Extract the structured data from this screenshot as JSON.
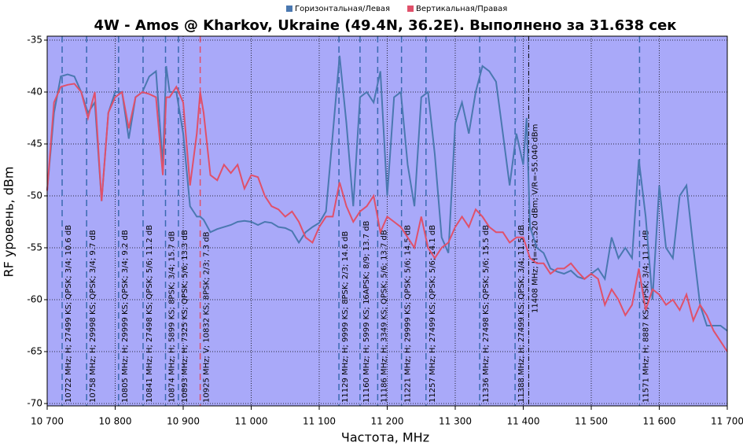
{
  "chart_data": {
    "type": "line",
    "title": "4W - Amos @ Kharkov, Ukraine (49.4N, 36.2E). Выполнено за 31.638 сек",
    "x_label": "Частота, MHz",
    "y_label": "RF уровень, dBm",
    "xlim": [
      10700,
      11700
    ],
    "ylim": [
      -70,
      -35
    ],
    "xticks": [
      {
        "value": 10700,
        "label": "10 700"
      },
      {
        "value": 10800,
        "label": "10 800"
      },
      {
        "value": 10900,
        "label": "10 900"
      },
      {
        "value": 11000,
        "label": "11 000"
      },
      {
        "value": 11100,
        "label": "11 100"
      },
      {
        "value": 11200,
        "label": "11 200"
      },
      {
        "value": 11300,
        "label": "11 300"
      },
      {
        "value": 11400,
        "label": "11 400"
      },
      {
        "value": 11500,
        "label": "11 500"
      },
      {
        "value": 11600,
        "label": "11 600"
      },
      {
        "value": 11700,
        "label": "11 700"
      }
    ],
    "yticks": [
      -35,
      -40,
      -45,
      -50,
      -55,
      -60,
      -65,
      -70
    ],
    "grid": true,
    "legend": "top",
    "x": [
      10700,
      10710,
      10720,
      10730,
      10740,
      10750,
      10760,
      10770,
      10780,
      10790,
      10800,
      10810,
      10820,
      10830,
      10840,
      10850,
      10860,
      10870,
      10875,
      10880,
      10890,
      10900,
      10910,
      10920,
      10925,
      10930,
      10940,
      10950,
      10960,
      10970,
      10980,
      10990,
      11000,
      11010,
      11020,
      11030,
      11040,
      11050,
      11060,
      11070,
      11080,
      11090,
      11100,
      11110,
      11120,
      11130,
      11140,
      11150,
      11160,
      11170,
      11180,
      11190,
      11200,
      11210,
      11220,
      11230,
      11240,
      11250,
      11260,
      11270,
      11280,
      11290,
      11300,
      11310,
      11320,
      11330,
      11340,
      11350,
      11360,
      11370,
      11380,
      11390,
      11400,
      11405,
      11410,
      11420,
      11430,
      11440,
      11450,
      11460,
      11470,
      11480,
      11490,
      11500,
      11510,
      11520,
      11530,
      11540,
      11550,
      11560,
      11570,
      11580,
      11590,
      11600,
      11610,
      11620,
      11630,
      11640,
      11650,
      11660,
      11670,
      11680,
      11690,
      11700
    ],
    "series": [
      {
        "name": "Горизонтальная/Левая",
        "color": "#4a78b0",
        "values": [
          -49.5,
          -42,
          -38.5,
          -38.3,
          -38.5,
          -40,
          -42,
          -41,
          -50.5,
          -42,
          -40,
          -40,
          -44.5,
          -40.5,
          -40,
          -38.5,
          -38,
          -47,
          -37.5,
          -40,
          -40,
          -44,
          -51,
          -52,
          -52,
          -52.3,
          -53.5,
          -53.2,
          -53,
          -52.8,
          -52.5,
          -52.4,
          -52.5,
          -52.8,
          -52.5,
          -52.6,
          -53,
          -53.1,
          -53.4,
          -54.5,
          -53.5,
          -53,
          -52.6,
          -51.5,
          -44,
          -36.5,
          -43,
          -51,
          -40.5,
          -40,
          -41,
          -38,
          -50,
          -40.5,
          -40,
          -47,
          -51,
          -40.5,
          -40,
          -46,
          -54,
          -55.5,
          -43,
          -41,
          -44,
          -40,
          -37.5,
          -38,
          -39,
          -44,
          -49,
          -44,
          -47,
          -42.5,
          -53,
          -55,
          -55.5,
          -57,
          -57.3,
          -57.5,
          -57.2,
          -57.8,
          -58,
          -57.5,
          -57,
          -58,
          -54,
          -56,
          -55,
          -56,
          -46.5,
          -52,
          -60,
          -49,
          -55,
          -56,
          -50,
          -49,
          -55,
          -60.5,
          -62.5,
          -62.5,
          -62.5,
          -63
        ]
      },
      {
        "name": "Вертикальная/Правая",
        "color": "#e0506a",
        "values": [
          -49.5,
          -41,
          -39.5,
          -39.3,
          -39.2,
          -40,
          -42.5,
          -40,
          -50.5,
          -42,
          -40.5,
          -40,
          -43.5,
          -40.5,
          -40,
          -40.2,
          -40.5,
          -48,
          -40.5,
          -40.5,
          -39.5,
          -41,
          -49,
          -44,
          -40,
          -42,
          -48,
          -48.5,
          -47,
          -47.8,
          -47,
          -49.3,
          -48,
          -48.2,
          -50,
          -51,
          -51.3,
          -52,
          -51.5,
          -52.5,
          -54,
          -54.5,
          -53,
          -52,
          -52,
          -48.7,
          -51,
          -52.5,
          -51.5,
          -51,
          -50,
          -53.5,
          -52,
          -52.5,
          -53,
          -54,
          -55,
          -52,
          -55,
          -56,
          -55,
          -54.5,
          -53,
          -52,
          -53,
          -51.3,
          -52,
          -53,
          -53.5,
          -53.5,
          -54.5,
          -54,
          -54,
          -55,
          -56,
          -56.5,
          -56.5,
          -57.5,
          -57,
          -57,
          -56.5,
          -57.3,
          -58,
          -57.5,
          -58,
          -60.5,
          -59,
          -60,
          -61.5,
          -60.5,
          -57,
          -61,
          -59,
          -59.5,
          -60.5,
          -60,
          -61,
          -59.5,
          -62,
          -60.5,
          -61.5,
          -63,
          -64,
          -65
        ]
      }
    ],
    "transponders": [
      {
        "freq": 10722,
        "color": "#3a6ab0",
        "label": "10722 MHz; H; 27499 KS; QPSK; 3/4; 10.6 dB"
      },
      {
        "freq": 10758,
        "color": "#3a6ab0",
        "label": "10758 MHz; H; 29998 KS; QPSK; 3/4; 9.7 dB"
      },
      {
        "freq": 10805,
        "color": "#3a6ab0",
        "label": "10805 MHz; H; 29999 KS; QPSK; 3/4; 9.2 dB"
      },
      {
        "freq": 10841,
        "color": "#3a6ab0",
        "label": "10841 MHz; H; 27498 KS; QPSK; 5/6; 11.2 dB"
      },
      {
        "freq": 10874,
        "color": "#3a6ab0",
        "label": "10874 MHz; H; 5899 KS; 8PSK; 3/4; 15.7 dB"
      },
      {
        "freq": 10893,
        "color": "#3a6ab0",
        "label": "10893 MHz; H; 7325 KS; QPSK; 5/6; 13.3 dB"
      },
      {
        "freq": 10925,
        "color": "#e0506a",
        "label": "10925 MHz; V; 10832 KS; 8PSK; 2/3; 7.3 dB"
      },
      {
        "freq": 11129,
        "color": "#3a6ab0",
        "label": "11129 MHz; H; 9999 KS; 8PSK; 2/3; 14.6 dB"
      },
      {
        "freq": 11160,
        "color": "#3a6ab0",
        "label": "11160 MHz; H; 5999 KS; 16APSK; 8/9; 13.7 dB"
      },
      {
        "freq": 11186,
        "color": "#3a6ab0",
        "label": "11186 MHz; H; 3349 KS; QPSK; 5/6; 13.7 dB"
      },
      {
        "freq": 11221,
        "color": "#3a6ab0",
        "label": "11221 MHz; H; 29999 KS; QPSK; 5/6; 14.5 dB"
      },
      {
        "freq": 11257,
        "color": "#3a6ab0",
        "label": "11257 MHz; H; 27499 KS; QPSK; 5/6; 14.1 dB"
      },
      {
        "freq": 11336,
        "color": "#3a6ab0",
        "label": "11336 MHz; H; 27498 KS; QPSK; 5/6; 15.5 dB"
      },
      {
        "freq": 11388,
        "color": "#3a6ab0",
        "label": "11388 MHz; H; 27499 KS; QPSK; 3/4; 11.5 dB"
      },
      {
        "freq": 11571,
        "color": "#3a6ab0",
        "label": "11571 MHz; H; 8887 KS; QPSK; 3/4; 11.1 dB"
      }
    ],
    "cursor": {
      "freq": 11408,
      "label": "11408 MHz; H=-42.520 dBm; V/R=-55.040 dBm"
    }
  }
}
